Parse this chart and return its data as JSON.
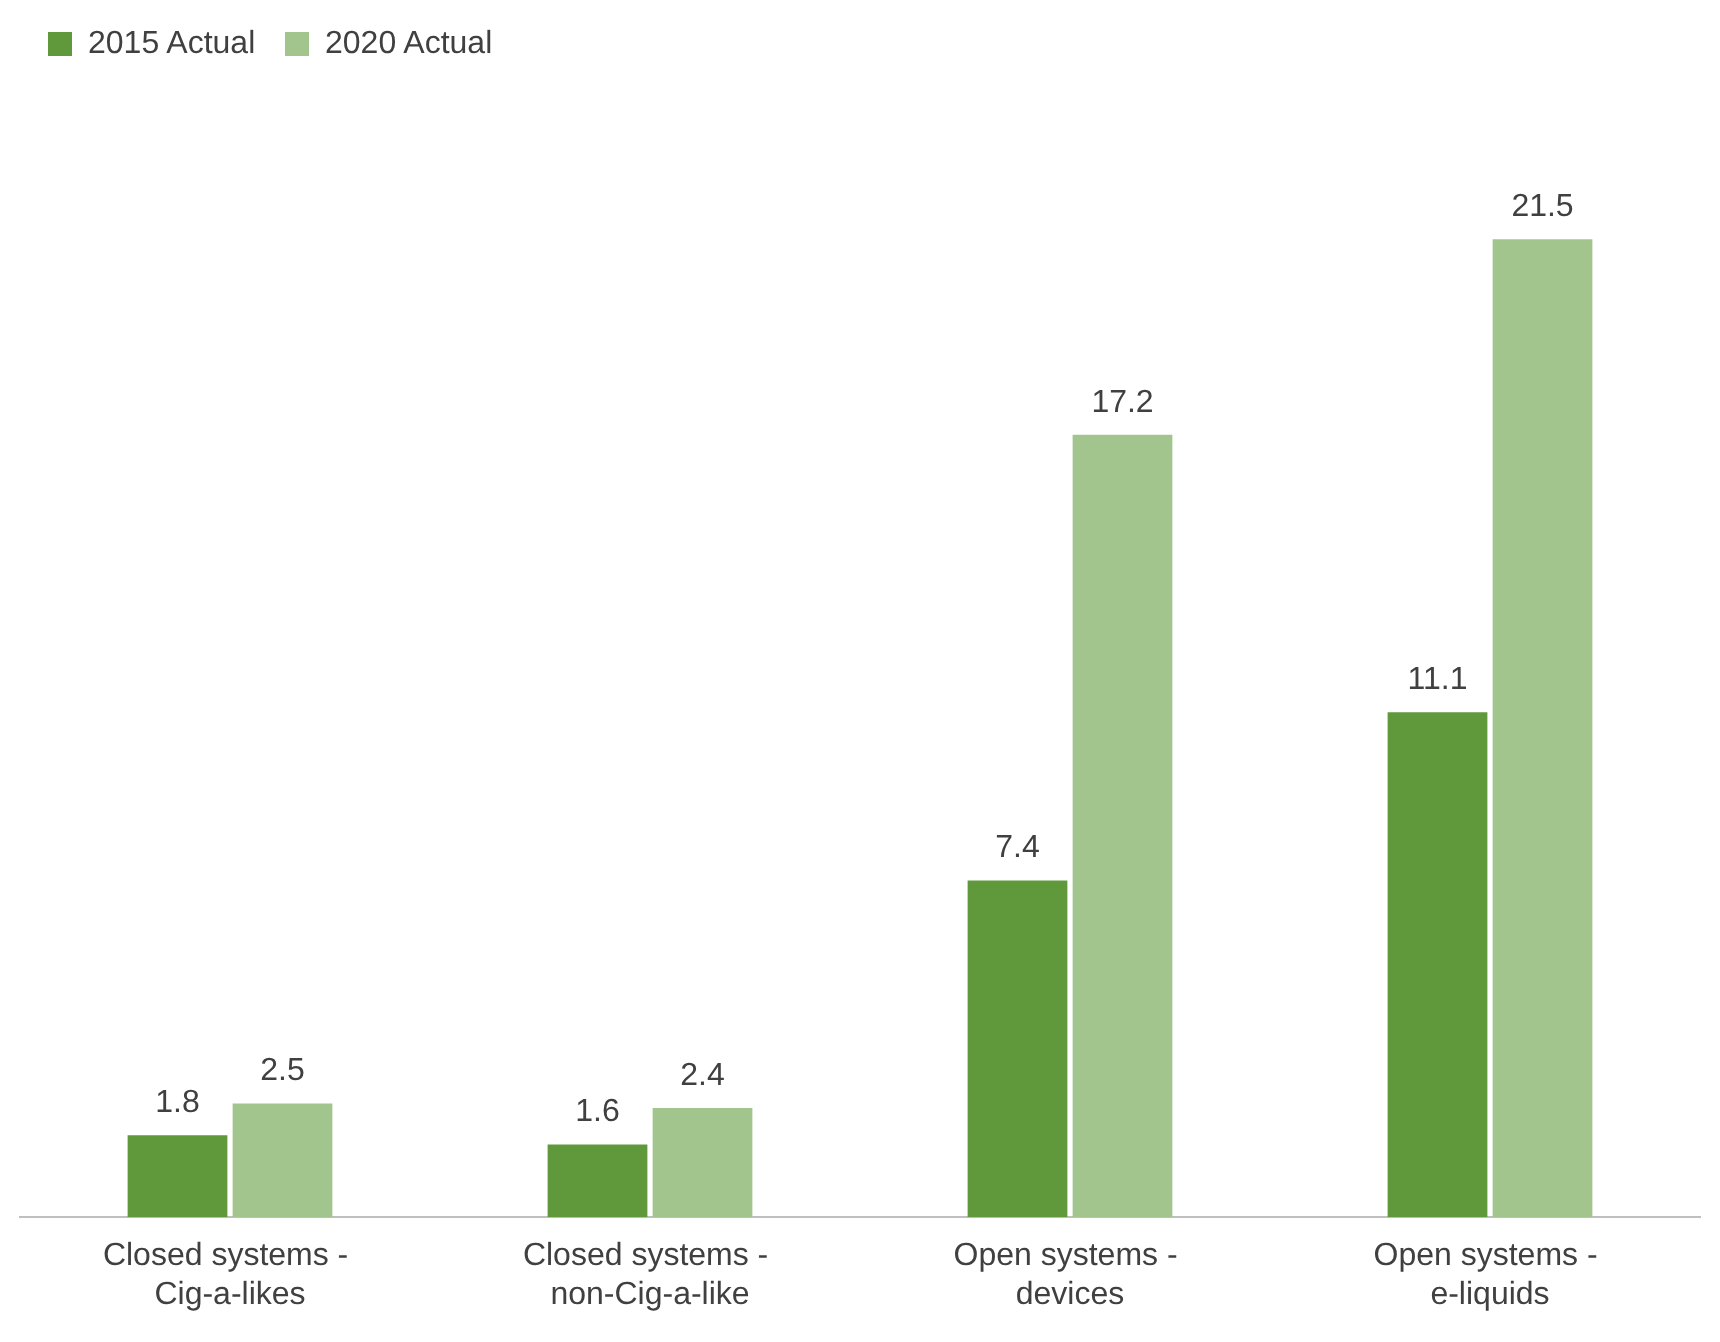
{
  "chart_data": {
    "type": "bar",
    "categories": [
      "Closed systems - Cig-a-likes",
      "Closed systems - non-Cig-a-like",
      "Open systems - devices",
      "Open systems - e-liquids"
    ],
    "series": [
      {
        "name": "2015 Actual",
        "color": "#5f993b",
        "values": [
          1.8,
          1.6,
          7.4,
          11.1
        ]
      },
      {
        "name": "2020 Actual",
        "color": "#a2c58e",
        "values": [
          2.5,
          2.4,
          17.2,
          21.5
        ]
      }
    ],
    "data_labels": true,
    "legend": "top left",
    "grid": false,
    "tick_labels": "x"
  }
}
